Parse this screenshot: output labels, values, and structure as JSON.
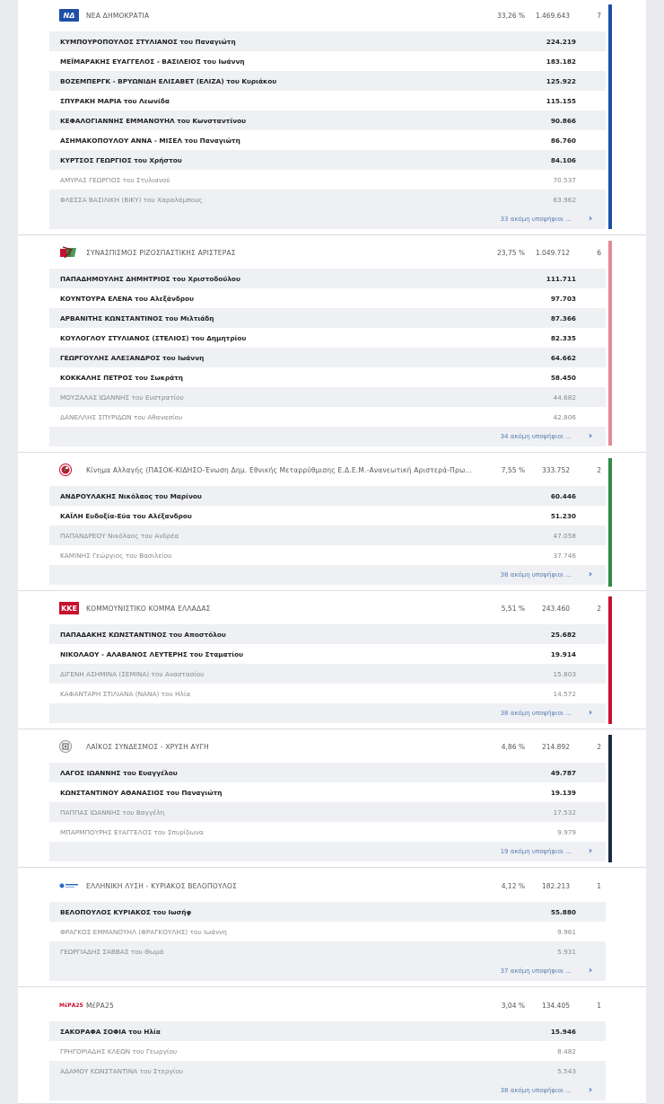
{
  "more_label": "ακόμη υποψήφιοι ...",
  "chevron": "›",
  "parties": [
    {
      "name": "ΝΕΑ ΔΗΜΟΚΡΑΤΙΑ",
      "logo": "nd-logo",
      "logo_text": "ΝΔ",
      "percent": "33,26 %",
      "votes": "1.469.643",
      "seats": "7",
      "color": "#1d4fa8",
      "candidates": [
        {
          "name": "ΚΥΜΠΟΥΡΟΠΟΥΛΟΣ ΣΤΥΛΙΑΝΟΣ του Παναγιώτη",
          "votes": "224.219",
          "elected": true
        },
        {
          "name": "ΜΕΪΜΑΡΑΚΗΣ ΕΥΑΓΓΕΛΟΣ - ΒΑΣΙΛΕΙΟΣ του Ιωάννη",
          "votes": "183.182",
          "elected": true
        },
        {
          "name": "ΒΟΖΕΜΠΕΡΓΚ - ΒΡΥΩΝΙΔΗ ΕΛΙΣΑΒΕΤ (ΕΛΙΖΑ) του Κυριάκου",
          "votes": "125.922",
          "elected": true
        },
        {
          "name": "ΣΠΥΡΑΚΗ ΜΑΡΙΑ του Λεωνίδα",
          "votes": "115.155",
          "elected": true
        },
        {
          "name": "ΚΕΦΑΛΟΓΙΑΝΝΗΣ ΕΜΜΑΝΟΥΗΛ του Κωνσταντίνου",
          "votes": "90.866",
          "elected": true
        },
        {
          "name": "ΑΣΗΜΑΚΟΠΟΥΛΟΥ ΑΝΝΑ - ΜΙΣΕΛ του Παναγιώτη",
          "votes": "86.760",
          "elected": true
        },
        {
          "name": "ΚΥΡΤΣΟΣ ΓΕΩΡΓΙΟΣ του Χρήστου",
          "votes": "84.106",
          "elected": true
        },
        {
          "name": "ΑΜΥΡΑΣ ΓΕΩΡΓΙΟΣ του Στυλιανού",
          "votes": "70.537",
          "elected": false
        },
        {
          "name": "ΦΛΕΣΣΑ ΒΑΣΙΛΙΚΗ (ΒΙΚΥ) του Χαραλάμπους",
          "votes": "63.962",
          "elected": false
        }
      ],
      "more_count": "33"
    },
    {
      "name": "ΣΥΝΑΣΠΙΣΜΟΣ ΡΙΖΟΣΠΑΣΤΙΚΗΣ ΑΡΙΣΤΕΡΑΣ",
      "logo": "syr-logo",
      "logo_text": "",
      "percent": "23,75 %",
      "votes": "1.049.712",
      "seats": "6",
      "color": "#e08a94",
      "candidates": [
        {
          "name": "ΠΑΠΑΔΗΜΟΥΛΗΣ ΔΗΜΗΤΡΙΟΣ του Χριστοδούλου",
          "votes": "111.711",
          "elected": true
        },
        {
          "name": "ΚΟΥΝΤΟΥΡΑ ΕΛΕΝΑ του Αλεξάνδρου",
          "votes": "97.703",
          "elected": true
        },
        {
          "name": "ΑΡΒΑΝΙΤΗΣ ΚΩΝΣΤΑΝΤΙΝΟΣ του Μιλτιάδη",
          "votes": "87.366",
          "elected": true
        },
        {
          "name": "ΚΟΥΛΟΓΛΟΥ ΣΤΥΛΙΑΝΟΣ (ΣΤΕΛΙΟΣ) του Δημητρίου",
          "votes": "82.335",
          "elected": true
        },
        {
          "name": "ΓΕΩΡΓΟΥΛΗΣ ΑΛΕΞΑΝΔΡΟΣ του Ιωάννη",
          "votes": "64.662",
          "elected": true
        },
        {
          "name": "ΚΟΚΚΑΛΗΣ ΠΕΤΡΟΣ του Σωκράτη",
          "votes": "58.450",
          "elected": true
        },
        {
          "name": "ΜΟΥΖΑΛΑΣ ΙΩΑΝΝΗΣ του Ευστρατίου",
          "votes": "44.682",
          "elected": false
        },
        {
          "name": "ΔΑΝΕΛΛΗΣ ΣΠΥΡΙΔΩΝ του Αθανασίου",
          "votes": "42.806",
          "elected": false
        }
      ],
      "more_count": "34"
    },
    {
      "name": "Κίνημα Αλλαγής (ΠΑΣΟΚ-ΚΙΔΗΣΟ-Ένωση Δημ. Εθνικής Μεταρρύθμισης Ε.Δ.Ε.Μ.-Ανανεωτική Αριστερά-Πρω...",
      "logo": "kinal-logo",
      "logo_text": "",
      "percent": "7,55 %",
      "votes": "333.752",
      "seats": "2",
      "color": "#2e8b46",
      "candidates": [
        {
          "name": "ΑΝΔΡΟΥΛΑΚΗΣ Νικόλαος του Μαρίνου",
          "votes": "60.446",
          "elected": true
        },
        {
          "name": "ΚΑΪΛΗ Ευδοξία-Εύα του Αλέξανδρου",
          "votes": "51.230",
          "elected": true
        },
        {
          "name": "ΠΑΠΑΝΔΡΕΟΥ Νικόλαος του Ανδρέα",
          "votes": "47.058",
          "elected": false
        },
        {
          "name": "ΚΑΜΙΝΗΣ Γεώργιος του Βασιλείου",
          "votes": "37.746",
          "elected": false
        }
      ],
      "more_count": "38"
    },
    {
      "name": "ΚΟΜΜΟΥΝΙΣΤΙΚΟ ΚΟΜΜΑ ΕΛΛΑΔΑΣ",
      "logo": "kke-logo",
      "logo_text": "ΚΚΕ",
      "percent": "5,51 %",
      "votes": "243.460",
      "seats": "2",
      "color": "#c8102e",
      "candidates": [
        {
          "name": "ΠΑΠΑΔΑΚΗΣ ΚΩΝΣΤΑΝΤΙΝΟΣ του Αποστόλου",
          "votes": "25.682",
          "elected": true
        },
        {
          "name": "ΝΙΚΟΛΑΟΥ - ΑΛΑΒΑΝΟΣ ΛΕΥΤΕΡΗΣ του Σταματίου",
          "votes": "19.914",
          "elected": true
        },
        {
          "name": "ΔΙΓΕΝΗ ΑΣΗΜΙΝΑ (ΣΕΜΙΝΑ) του Αναστασίου",
          "votes": "15.803",
          "elected": false
        },
        {
          "name": "ΚΑΦΑΝΤΑΡΗ ΣΤΙΛΙΑΝΑ (ΝΑΝΑ) του Ηλία",
          "votes": "14.572",
          "elected": false
        }
      ],
      "more_count": "38"
    },
    {
      "name": "ΛΑΪΚΟΣ ΣΥΝΔΕΣΜΟΣ - ΧΡΥΣΗ ΑΥΓΗ",
      "logo": "xa-logo",
      "logo_text": "",
      "percent": "4,86 %",
      "votes": "214.892",
      "seats": "2",
      "color": "#1a2b44",
      "candidates": [
        {
          "name": "ΛΑΓΟΣ ΙΩΑΝΝΗΣ του Ευαγγέλου",
          "votes": "49.787",
          "elected": true
        },
        {
          "name": "ΚΩΝΣΤΑΝΤΙΝΟΥ ΑΘΑΝΑΣΙΟΣ του Παναγιώτη",
          "votes": "19.139",
          "elected": true
        },
        {
          "name": "ΠΑΠΠΑΣ ΙΩΑΝΝΗΣ του Βαγγέλη",
          "votes": "17.532",
          "elected": false
        },
        {
          "name": "ΜΠΑΡΜΠΟΥΡΗΣ ΕΥΑΓΓΕΛΟΣ του Σπυρίδωνα",
          "votes": "9.979",
          "elected": false
        }
      ],
      "more_count": "19"
    },
    {
      "name": "ΕΛΛΗΝΙΚΗ ΛΥΣΗ - ΚΥΡΙΑΚΟΣ ΒΕΛΟΠΟΥΛΟΣ",
      "logo": "el-logo",
      "logo_text": "",
      "percent": "4,12 %",
      "votes": "182.213",
      "seats": "1",
      "color": "",
      "candidates": [
        {
          "name": "ΒΕΛΟΠΟΥΛΟΣ ΚΥΡΙΑΚΟΣ του Ιωσήφ",
          "votes": "55.880",
          "elected": true
        },
        {
          "name": "ΦΡΑΓΚΟΣ ΕΜΜΑΝΟΥΗΛ (ΦΡΑΓΚΟΥΛΗΣ) του Ιωάννη",
          "votes": "9.961",
          "elected": false
        },
        {
          "name": "ΓΕΩΡΓΙΑΔΗΣ ΣΑΒΒΑΣ του Θωμά",
          "votes": "5.931",
          "elected": false
        }
      ],
      "more_count": "37"
    },
    {
      "name": "ΜέΡΑ25",
      "logo": "mera-logo",
      "logo_text": "ΜέΡΑ25",
      "percent": "3,04 %",
      "votes": "134.405",
      "seats": "1",
      "color": "",
      "candidates": [
        {
          "name": "ΣΑΚΟΡΑΦΑ ΣΟΦΙΑ του Ηλία",
          "votes": "15.946",
          "elected": true
        },
        {
          "name": "ΓΡΗΓΟΡΙΑΔΗΣ ΚΛΕΩΝ του Γεωργίου",
          "votes": "8.482",
          "elected": false
        },
        {
          "name": "ΑΔΑΜΟΥ ΚΩΝΣΤΑΝΤΙΝΑ του Στεργίου",
          "votes": "5.543",
          "elected": false
        }
      ],
      "more_count": "38"
    }
  ]
}
